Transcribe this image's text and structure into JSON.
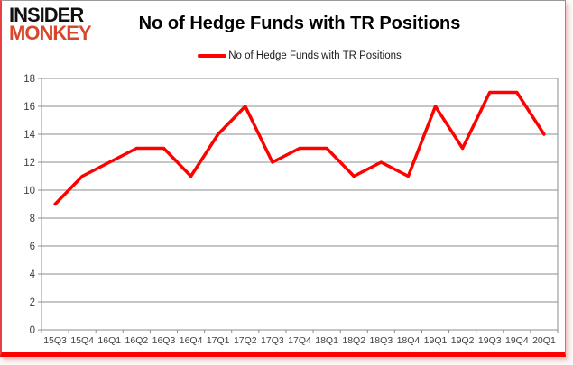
{
  "logo": {
    "line1": "INSIDER",
    "line2": "MONKEY"
  },
  "header": {
    "title": "No of Hedge Funds with TR Positions"
  },
  "legend": {
    "label": "No of Hedge Funds with TR Positions"
  },
  "colors": {
    "series": "#FF0000",
    "grid": "#8C8C8C",
    "axis_text": "#3F3F3F",
    "title_text": "#000000",
    "logo_black": "#111111",
    "logo_red": "#D9472B",
    "card_border_red": "#FF0000"
  },
  "chart_data": {
    "type": "line",
    "title": "No of Hedge Funds with TR Positions",
    "categories": [
      "15Q3",
      "15Q4",
      "16Q1",
      "16Q2",
      "16Q3",
      "16Q4",
      "17Q1",
      "17Q2",
      "17Q3",
      "17Q4",
      "18Q1",
      "18Q2",
      "18Q3",
      "18Q4",
      "19Q1",
      "19Q2",
      "19Q3",
      "19Q4",
      "20Q1"
    ],
    "series": [
      {
        "name": "No of Hedge Funds with TR Positions",
        "values": [
          9,
          11,
          12,
          13,
          13,
          11,
          14,
          16,
          12,
          13,
          13,
          11,
          12,
          11,
          16,
          13,
          17,
          17,
          14
        ]
      }
    ],
    "xlabel": "",
    "ylabel": "",
    "ylim": [
      0,
      18
    ],
    "ytick_step": 2,
    "grid": true,
    "legend_position": "top"
  }
}
